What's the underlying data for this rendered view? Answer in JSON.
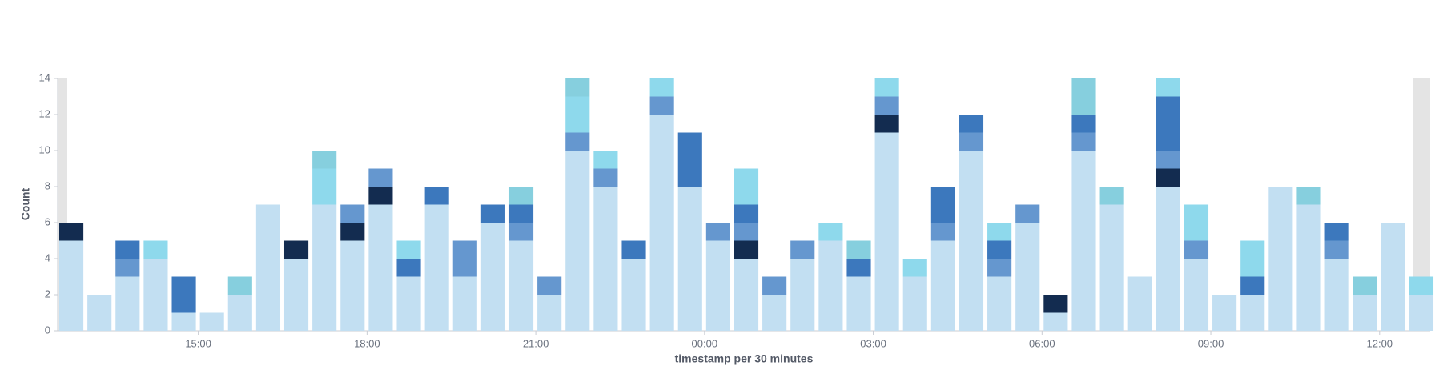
{
  "chart_data": {
    "type": "bar",
    "stacked": true,
    "y_label": "Count",
    "x_label": "timestamp per 30 minutes",
    "x": [
      12.5,
      13,
      13.5,
      14,
      14.5,
      15,
      15.5,
      16,
      16.5,
      17,
      17.5,
      18,
      18.5,
      19,
      19.5,
      20,
      20.5,
      21,
      21.5,
      22,
      22.5,
      23,
      23.5,
      24,
      24.5,
      25,
      25.5,
      26,
      26.5,
      27,
      27.5,
      28,
      28.5,
      29,
      29.5,
      30,
      30.5,
      31,
      31.5,
      32,
      32.5,
      33,
      33.5,
      34,
      34.5,
      35,
      35.5,
      36,
      36.5
    ],
    "xlim": [
      12.5,
      36.9
    ],
    "xticks": [
      {
        "value": 15,
        "label": "15:00"
      },
      {
        "value": 18,
        "label": "18:00"
      },
      {
        "value": 21,
        "label": "21:00"
      },
      {
        "value": 24,
        "label": "00:00"
      },
      {
        "value": 27,
        "label": "03:00"
      },
      {
        "value": 30,
        "label": "06:00"
      },
      {
        "value": 33,
        "label": "09:00"
      },
      {
        "value": 36,
        "label": "12:00"
      }
    ],
    "ylim": [
      0,
      14
    ],
    "yticks": [
      0,
      2,
      4,
      6,
      8,
      10,
      12,
      14
    ],
    "grid": false,
    "series": [
      {
        "color": "#c2dff2",
        "values": [
          5,
          2,
          3,
          4,
          1,
          1,
          2,
          7,
          4,
          7,
          5,
          7,
          3,
          7,
          3,
          6,
          5,
          2,
          10,
          8,
          4,
          12,
          8,
          5,
          4,
          2,
          4,
          5,
          3,
          11,
          3,
          5,
          10,
          3,
          6,
          1,
          10,
          7,
          3,
          8,
          4,
          2,
          2,
          8,
          7,
          4,
          2,
          6,
          2
        ]
      },
      {
        "color": "#132c50",
        "values": [
          1,
          0,
          0,
          0,
          0,
          0,
          0,
          0,
          1,
          0,
          1,
          1,
          0,
          0,
          0,
          0,
          0,
          0,
          0,
          0,
          0,
          0,
          0,
          0,
          1,
          0,
          0,
          0,
          0,
          1,
          0,
          0,
          0,
          0,
          0,
          1,
          0,
          0,
          0,
          1,
          0,
          0,
          0,
          0,
          0,
          0,
          0,
          0,
          0
        ]
      },
      {
        "color": "#6597cf",
        "values": [
          0,
          0,
          1,
          0,
          0,
          0,
          0,
          0,
          0,
          0,
          1,
          1,
          0,
          0,
          2,
          0,
          1,
          1,
          1,
          1,
          0,
          1,
          0,
          1,
          1,
          1,
          1,
          0,
          0,
          1,
          0,
          1,
          1,
          1,
          1,
          0,
          1,
          0,
          0,
          1,
          1,
          0,
          0,
          0,
          0,
          1,
          0,
          0,
          0
        ]
      },
      {
        "color": "#3c78bd",
        "values": [
          0,
          0,
          1,
          0,
          2,
          0,
          0,
          0,
          0,
          0,
          0,
          0,
          1,
          1,
          0,
          1,
          1,
          0,
          0,
          0,
          1,
          0,
          3,
          0,
          1,
          0,
          0,
          0,
          1,
          0,
          0,
          2,
          1,
          1,
          0,
          0,
          1,
          0,
          0,
          3,
          0,
          0,
          1,
          0,
          0,
          1,
          0,
          0,
          0
        ]
      },
      {
        "color": "#8ed9ec",
        "values": [
          0,
          0,
          0,
          1,
          0,
          0,
          0,
          0,
          0,
          2,
          0,
          0,
          1,
          0,
          0,
          0,
          0,
          0,
          2,
          1,
          0,
          1,
          0,
          0,
          2,
          0,
          0,
          1,
          0,
          1,
          1,
          0,
          0,
          1,
          0,
          0,
          0,
          0,
          0,
          1,
          2,
          0,
          2,
          0,
          0,
          0,
          0,
          0,
          1
        ]
      },
      {
        "color": "#86cfde",
        "values": [
          0,
          0,
          0,
          0,
          0,
          0,
          1,
          0,
          0,
          1,
          0,
          0,
          0,
          0,
          0,
          0,
          1,
          0,
          1,
          0,
          0,
          0,
          0,
          0,
          0,
          0,
          0,
          0,
          1,
          0,
          0,
          0,
          0,
          0,
          0,
          0,
          2,
          1,
          0,
          0,
          0,
          0,
          0,
          0,
          1,
          0,
          1,
          0,
          0
        ]
      }
    ]
  }
}
